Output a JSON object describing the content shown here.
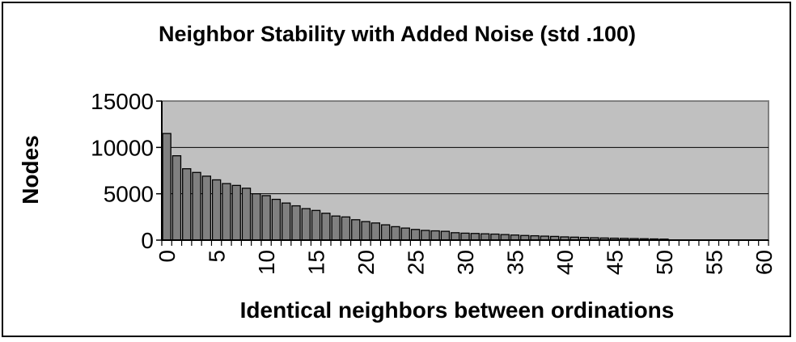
{
  "chart_data": {
    "type": "bar",
    "title": "Neighbor Stability with Added Noise (std .100)",
    "xlabel": "Identical neighbors between ordinations",
    "ylabel": "Nodes",
    "ylim": [
      0,
      15000
    ],
    "yticks": [
      "0",
      "5000",
      "10000",
      "15000"
    ],
    "xticks": [
      "0",
      "5",
      "10",
      "15",
      "20",
      "25",
      "30",
      "35",
      "40",
      "45",
      "50",
      "55",
      "60"
    ],
    "grid": true,
    "legend": "none",
    "colors": {
      "bar": "#808080",
      "plot_bg": "#c0c0c0",
      "plot_border": "#808080"
    },
    "x": [
      0,
      1,
      2,
      3,
      4,
      5,
      6,
      7,
      8,
      9,
      10,
      11,
      12,
      13,
      14,
      15,
      16,
      17,
      18,
      19,
      20,
      21,
      22,
      23,
      24,
      25,
      26,
      27,
      28,
      29,
      30,
      31,
      32,
      33,
      34,
      35,
      36,
      37,
      38,
      39,
      40,
      41,
      42,
      43,
      44,
      45,
      46,
      47,
      48,
      49,
      50,
      51,
      52,
      53,
      54,
      55,
      56,
      57,
      58,
      59,
      60
    ],
    "values": [
      11500,
      9100,
      7700,
      7300,
      6900,
      6500,
      6100,
      5900,
      5600,
      5000,
      4800,
      4400,
      4000,
      3700,
      3400,
      3200,
      2900,
      2600,
      2500,
      2200,
      2000,
      1850,
      1650,
      1450,
      1300,
      1150,
      1050,
      1000,
      950,
      800,
      750,
      720,
      680,
      650,
      600,
      550,
      500,
      470,
      430,
      400,
      350,
      320,
      290,
      260,
      230,
      210,
      190,
      170,
      150,
      130,
      110,
      0,
      0,
      0,
      0,
      0,
      0,
      0,
      0,
      0,
      0
    ]
  }
}
